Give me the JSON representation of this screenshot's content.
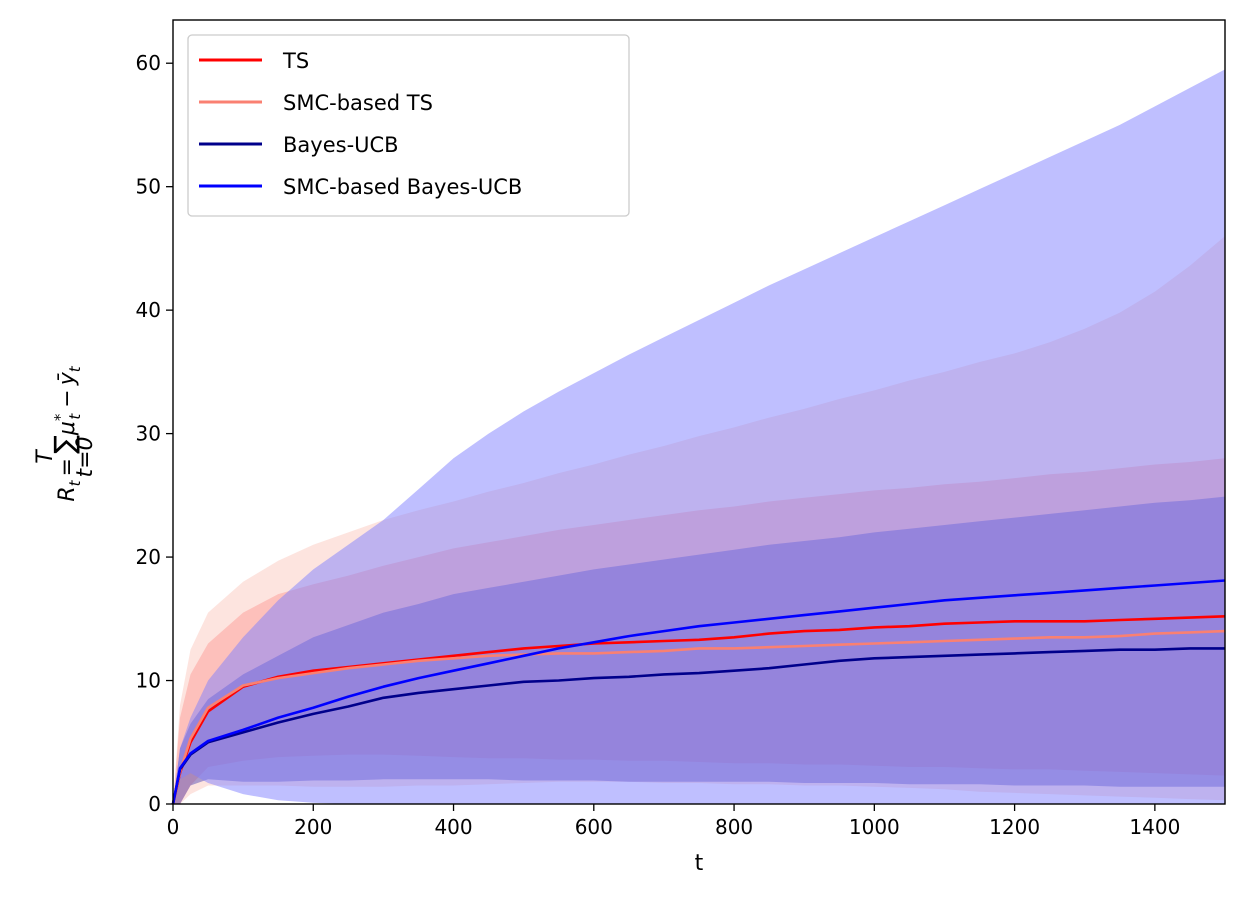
{
  "chart_data": {
    "type": "line",
    "xlabel": "t",
    "ylabel": "R_t = Σ_{t=0}^{T} μ*_t − ȳ_t",
    "ylabel_parts": {
      "R": "R",
      "t_sub": "t",
      "eq": "=",
      "sum": "∑",
      "sum_top": "T",
      "sum_bottom": "t=0",
      "mu": "μ",
      "mu_sup": "*",
      "mu_sub": "t",
      "minus": "−",
      "ybar": "ȳ",
      "ybar_sub": "t"
    },
    "xlim": [
      0,
      1500
    ],
    "ylim": [
      0,
      63.5
    ],
    "xticks": [
      0,
      200,
      400,
      600,
      800,
      1000,
      1200,
      1400
    ],
    "yticks": [
      0,
      10,
      20,
      30,
      40,
      50,
      60
    ],
    "grid": false,
    "legend_position": "top-left",
    "x": [
      0,
      10,
      25,
      50,
      100,
      150,
      200,
      250,
      300,
      350,
      400,
      450,
      500,
      550,
      600,
      650,
      700,
      750,
      800,
      850,
      900,
      950,
      1000,
      1050,
      1100,
      1150,
      1200,
      1250,
      1300,
      1350,
      1400,
      1450,
      1500
    ],
    "series": [
      {
        "name": "TS",
        "color": "#ff0000",
        "band_color": "#ff6f6f",
        "values": [
          0,
          2.5,
          5.0,
          7.5,
          9.5,
          10.3,
          10.8,
          11.1,
          11.4,
          11.7,
          12.0,
          12.3,
          12.6,
          12.8,
          13.0,
          13.1,
          13.2,
          13.3,
          13.5,
          13.8,
          14.0,
          14.1,
          14.3,
          14.4,
          14.6,
          14.7,
          14.8,
          14.8,
          14.8,
          14.9,
          15.0,
          15.1,
          15.2
        ],
        "upper": [
          0,
          7,
          10.5,
          13.0,
          15.5,
          17.0,
          17.8,
          18.5,
          19.3,
          20.0,
          20.7,
          21.2,
          21.7,
          22.2,
          22.6,
          23.0,
          23.4,
          23.8,
          24.1,
          24.5,
          24.8,
          25.1,
          25.4,
          25.6,
          25.9,
          26.1,
          26.4,
          26.7,
          26.9,
          27.2,
          27.5,
          27.7,
          28.0
        ],
        "lower": [
          0,
          0,
          1.5,
          3.0,
          3.5,
          3.8,
          3.9,
          4.0,
          4.0,
          3.9,
          3.8,
          3.7,
          3.7,
          3.6,
          3.6,
          3.5,
          3.5,
          3.4,
          3.3,
          3.3,
          3.2,
          3.2,
          3.1,
          3.0,
          3.0,
          2.9,
          2.8,
          2.8,
          2.7,
          2.6,
          2.5,
          2.4,
          2.3
        ]
      },
      {
        "name": "SMC-based TS",
        "color": "#fa8072",
        "band_color": "#fbc9c0",
        "values": [
          0,
          2.6,
          5.3,
          7.8,
          9.6,
          10.2,
          10.6,
          11.0,
          11.3,
          11.6,
          11.8,
          12.0,
          12.1,
          12.2,
          12.2,
          12.3,
          12.4,
          12.6,
          12.6,
          12.7,
          12.8,
          12.9,
          13.0,
          13.1,
          13.2,
          13.3,
          13.4,
          13.5,
          13.5,
          13.6,
          13.8,
          13.9,
          14.0
        ],
        "upper": [
          0,
          8,
          12.5,
          15.5,
          18.0,
          19.7,
          21.0,
          22.0,
          23.0,
          23.8,
          24.5,
          25.3,
          26.0,
          26.8,
          27.5,
          28.3,
          29.0,
          29.8,
          30.5,
          31.3,
          32.0,
          32.8,
          33.5,
          34.3,
          35.0,
          35.8,
          36.5,
          37.4,
          38.5,
          39.8,
          41.5,
          43.6,
          46.0
        ],
        "lower": [
          0,
          0,
          0.8,
          1.5,
          1.5,
          1.5,
          1.4,
          1.4,
          1.4,
          1.5,
          1.5,
          1.6,
          1.7,
          1.8,
          1.8,
          1.8,
          1.7,
          1.7,
          1.6,
          1.6,
          1.5,
          1.5,
          1.4,
          1.3,
          1.2,
          1.0,
          0.9,
          0.8,
          0.7,
          0.6,
          0.5,
          0.4,
          0.3
        ]
      },
      {
        "name": "Bayes-UCB",
        "color": "#00008b",
        "band_color": "#5a50b8",
        "values": [
          0,
          2.8,
          4.0,
          5.0,
          5.8,
          6.6,
          7.3,
          7.9,
          8.6,
          9.0,
          9.3,
          9.6,
          9.9,
          10.0,
          10.2,
          10.3,
          10.5,
          10.6,
          10.8,
          11.0,
          11.3,
          11.6,
          11.8,
          11.9,
          12.0,
          12.1,
          12.2,
          12.3,
          12.4,
          12.5,
          12.5,
          12.6,
          12.6
        ],
        "upper": [
          0,
          4.5,
          6.5,
          8.5,
          10.5,
          12.0,
          13.5,
          14.5,
          15.5,
          16.2,
          17.0,
          17.5,
          18.0,
          18.5,
          19.0,
          19.4,
          19.8,
          20.2,
          20.6,
          21.0,
          21.3,
          21.6,
          22.0,
          22.3,
          22.6,
          22.9,
          23.2,
          23.5,
          23.8,
          24.1,
          24.4,
          24.6,
          24.9
        ],
        "lower": [
          0,
          0,
          1.5,
          2.0,
          1.8,
          1.8,
          1.9,
          1.9,
          2.0,
          2.0,
          2.0,
          2.0,
          1.9,
          1.9,
          1.9,
          1.8,
          1.8,
          1.8,
          1.8,
          1.8,
          1.7,
          1.7,
          1.7,
          1.6,
          1.6,
          1.6,
          1.5,
          1.5,
          1.5,
          1.4,
          1.4,
          1.4,
          1.4
        ]
      },
      {
        "name": "SMC-based Bayes-UCB",
        "color": "#0000ff",
        "band_color": "#8080ff",
        "values": [
          0,
          2.9,
          4.1,
          5.1,
          6.0,
          7.0,
          7.8,
          8.7,
          9.5,
          10.2,
          10.8,
          11.4,
          12.0,
          12.6,
          13.1,
          13.6,
          14.0,
          14.4,
          14.7,
          15.0,
          15.3,
          15.6,
          15.9,
          16.2,
          16.5,
          16.7,
          16.9,
          17.1,
          17.3,
          17.5,
          17.7,
          17.9,
          18.1
        ],
        "upper": [
          0,
          4.5,
          7.0,
          10.0,
          13.5,
          16.5,
          19.0,
          21.0,
          23.0,
          25.5,
          28.0,
          30.0,
          31.8,
          33.4,
          34.9,
          36.4,
          37.8,
          39.2,
          40.6,
          42.0,
          43.3,
          44.6,
          45.9,
          47.2,
          48.5,
          49.8,
          51.1,
          52.4,
          53.7,
          55.0,
          56.5,
          58.0,
          59.5
        ],
        "lower": [
          0,
          2.0,
          2.5,
          1.7,
          0.8,
          0.3,
          0.1,
          0.0,
          0.0,
          0.0,
          0.0,
          0.0,
          0.0,
          0.0,
          0.0,
          0.0,
          0.0,
          0.0,
          0.0,
          0.0,
          0.0,
          0.0,
          0.0,
          0.0,
          0.0,
          0.0,
          0.0,
          0.0,
          0.0,
          0.0,
          0.0,
          0.0,
          0.0
        ]
      }
    ]
  }
}
